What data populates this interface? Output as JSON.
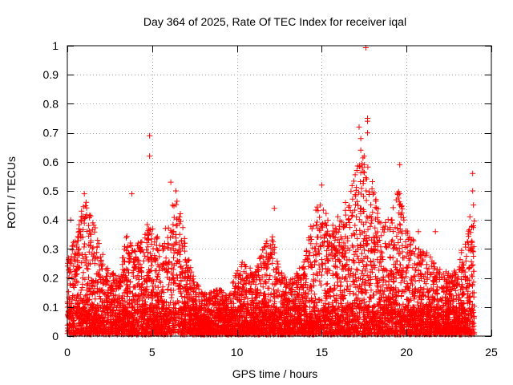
{
  "chart_data": {
    "type": "scatter",
    "title": "Day 364 of 2025, Rate Of TEC Index for receiver iqal",
    "xlabel": "GPS time / hours",
    "ylabel": "ROTI / TECUs",
    "xlim": [
      0,
      25
    ],
    "ylim": [
      0,
      1
    ],
    "xticks": [
      "0",
      "5",
      "10",
      "15",
      "20",
      "25"
    ],
    "yticks": [
      "0",
      "0.1",
      "0.2",
      "0.3",
      "0.4",
      "0.5",
      "0.6",
      "0.7",
      "0.8",
      "0.9",
      "1"
    ],
    "grid": true,
    "marker": "+",
    "color": "#ff0000",
    "series": [
      {
        "name": "ROTI",
        "envelope_x": [
          0,
          0.5,
          1,
          1.5,
          2,
          2.5,
          3,
          3.5,
          4,
          4.5,
          5,
          5.5,
          6,
          6.5,
          7,
          7.5,
          8,
          8.5,
          9,
          9.5,
          10,
          10.5,
          11,
          11.5,
          12,
          12.5,
          13,
          13.5,
          14,
          14.5,
          15,
          15.5,
          16,
          16.5,
          17,
          17.5,
          18,
          18.5,
          19,
          19.5,
          20,
          20.5,
          21,
          21.5,
          22,
          22.5,
          23,
          23.5,
          24
        ],
        "envelope_y": [
          0.25,
          0.33,
          0.45,
          0.38,
          0.28,
          0.22,
          0.18,
          0.33,
          0.28,
          0.35,
          0.38,
          0.3,
          0.4,
          0.46,
          0.3,
          0.18,
          0.14,
          0.14,
          0.15,
          0.12,
          0.22,
          0.25,
          0.2,
          0.28,
          0.35,
          0.22,
          0.18,
          0.2,
          0.25,
          0.4,
          0.45,
          0.35,
          0.4,
          0.42,
          0.55,
          0.6,
          0.5,
          0.4,
          0.38,
          0.48,
          0.35,
          0.3,
          0.28,
          0.25,
          0.22,
          0.2,
          0.22,
          0.35,
          0.45
        ],
        "highlights": [
          {
            "x": 4.85,
            "y": 0.69
          },
          {
            "x": 4.85,
            "y": 0.62
          },
          {
            "x": 17.6,
            "y": 0.993
          },
          {
            "x": 17.7,
            "y": 0.75
          },
          {
            "x": 17.7,
            "y": 0.74
          },
          {
            "x": 17.2,
            "y": 0.72
          },
          {
            "x": 17.3,
            "y": 0.68
          },
          {
            "x": 17.7,
            "y": 0.7
          },
          {
            "x": 17.3,
            "y": 0.64
          },
          {
            "x": 17.5,
            "y": 0.62
          },
          {
            "x": 17.5,
            "y": 0.59
          },
          {
            "x": 19.6,
            "y": 0.59
          },
          {
            "x": 6.1,
            "y": 0.53
          },
          {
            "x": 6.4,
            "y": 0.5
          },
          {
            "x": 3.8,
            "y": 0.49
          },
          {
            "x": 1.0,
            "y": 0.49
          },
          {
            "x": 15.0,
            "y": 0.52
          },
          {
            "x": 23.9,
            "y": 0.56
          },
          {
            "x": 23.9,
            "y": 0.5
          },
          {
            "x": 12.2,
            "y": 0.44
          },
          {
            "x": 16.4,
            "y": 0.46
          },
          {
            "x": 19.6,
            "y": 0.49
          },
          {
            "x": 21.7,
            "y": 0.36
          },
          {
            "x": 20.7,
            "y": 0.36
          },
          {
            "x": 0.2,
            "y": 0.4
          }
        ]
      }
    ]
  }
}
